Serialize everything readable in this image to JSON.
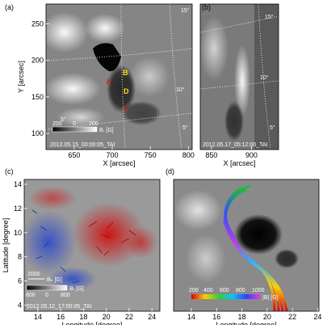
{
  "figure": {
    "panels": [
      {
        "label": "(a)",
        "xlabel": "X [arcsec]",
        "ylabel": "Y [arcsec]",
        "xlim": [
          613,
          805
        ],
        "ylim": [
          78,
          277
        ],
        "xticks": [
          650,
          700,
          750,
          800
        ],
        "yticks": [
          100,
          150,
          200,
          250
        ],
        "grid_labels": [
          "15°",
          "10°",
          "5°",
          "5°"
        ],
        "spot_labels": [
          "A",
          "B",
          "C",
          "D"
        ],
        "colorbar": {
          "ticks": [
            "200",
            "0",
            "200"
          ],
          "label": "Bᵣ [G]"
        },
        "timestamp": "2012.05.15_00:00:05_TAI"
      },
      {
        "label": "(b)",
        "xlabel": "X [arcsec]",
        "xlim": [
          836,
          934
        ],
        "xticks": [
          850,
          900
        ],
        "grid_labels": [
          "15°",
          "10°",
          "5°"
        ],
        "timestamp": "2012.05.17_05:12:00_TAI"
      },
      {
        "label": "(c)",
        "xlabel": "Longitude [degree]",
        "ylabel": "Latitude [degree]",
        "xlim": [
          12.8,
          24.7
        ],
        "ylim": [
          3.5,
          14.4
        ],
        "xticks": [
          14,
          16,
          18,
          20,
          22,
          24
        ],
        "yticks": [
          4,
          6,
          8,
          10,
          12,
          14
        ],
        "arrow_legend": {
          "value": "2000",
          "label": "Bₕ [G]"
        },
        "colorbar": {
          "ticks": [
            "800",
            "0",
            "800"
          ],
          "label": "Bᵣ [G]"
        },
        "timestamp": "2012.05.12_17:00:05_TAI"
      },
      {
        "label": "(d)",
        "xlabel": "Longitude [degree]",
        "xlim": [
          12.6,
          24.1
        ],
        "xticks": [
          14,
          16,
          18,
          20,
          22,
          24
        ],
        "colorbar": {
          "ticks": [
            "200",
            "400",
            "600",
            "800",
            "1000"
          ],
          "label": "|B| [G]"
        }
      }
    ]
  }
}
